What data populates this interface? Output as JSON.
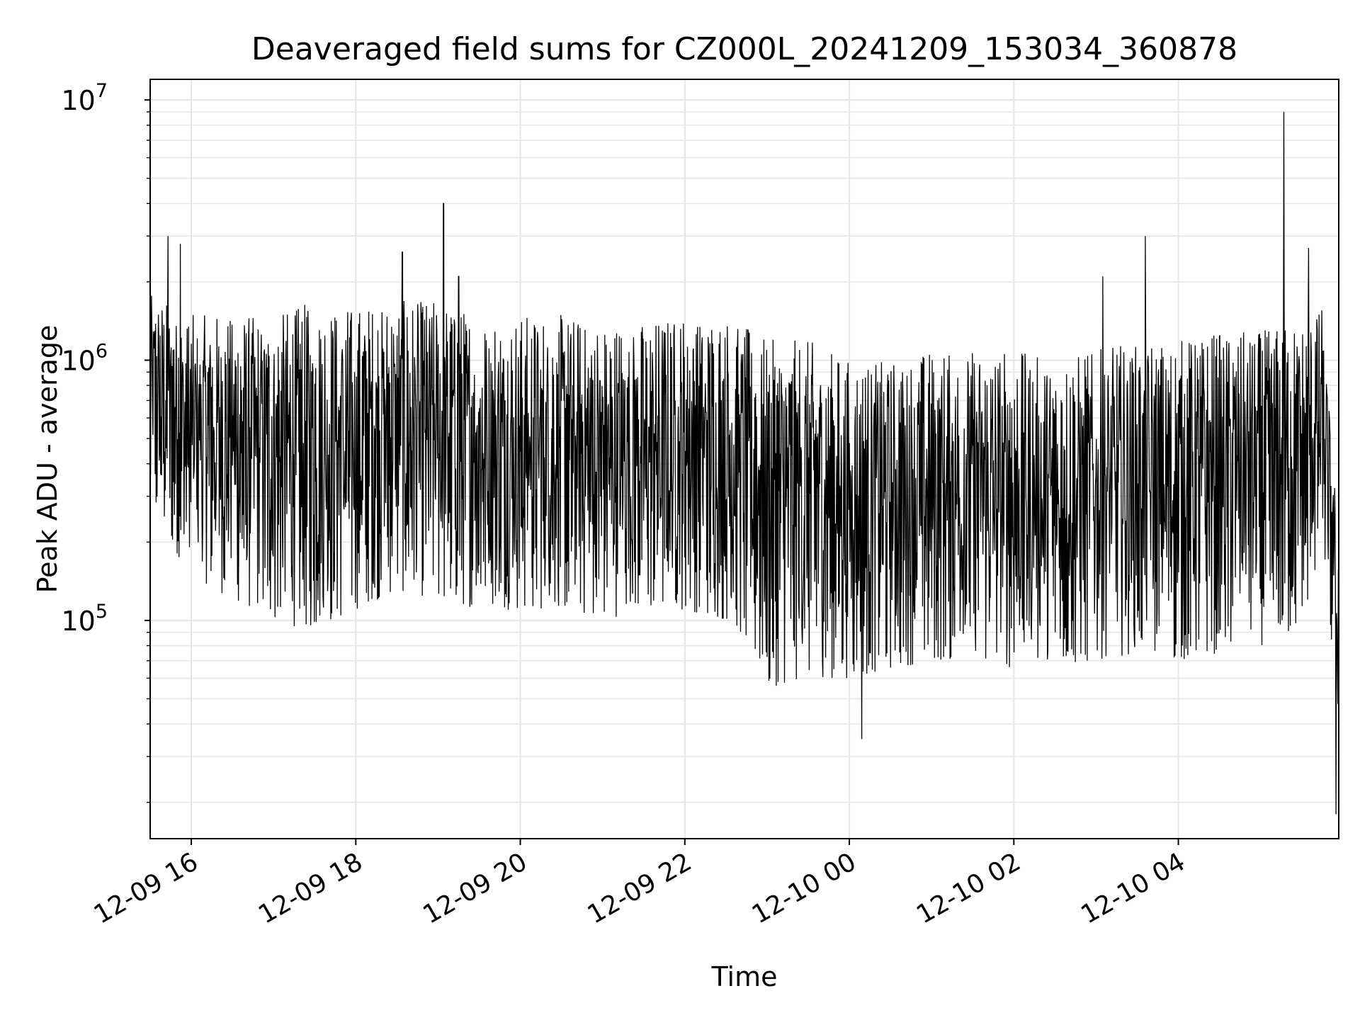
{
  "chart_data": {
    "type": "line",
    "title": "Deaveraged field sums for CZ000L_20241209_153034_360878",
    "xlabel": "Time",
    "ylabel": "Peak ADU - average",
    "yscale": "log",
    "ylim": [
      14500,
      12000000
    ],
    "xlim": [
      "12-09 15:30",
      "12-10 05:57"
    ],
    "x_ticks": [
      "12-09 16",
      "12-09 18",
      "12-09 20",
      "12-09 22",
      "12-10 00",
      "12-10 02",
      "12-10 04"
    ],
    "y_ticks": [
      {
        "base": "10",
        "exp": "5",
        "value": 100000
      },
      {
        "base": "10",
        "exp": "6",
        "value": 1000000
      },
      {
        "base": "10",
        "exp": "7",
        "value": 10000000
      }
    ],
    "grid": true,
    "line_color": "#000000",
    "grid_color": "#e6e6e6",
    "series": [
      {
        "x": [
          "12-09 15:30",
          "12-09 16:00",
          "12-09 16:30",
          "12-09 17:00",
          "12-09 17:30",
          "12-09 18:00",
          "12-09 18:30",
          "12-09 19:00",
          "12-09 19:30",
          "12-09 20:00",
          "12-09 20:30",
          "12-09 21:00",
          "12-09 21:30",
          "12-09 22:00",
          "12-09 22:30",
          "12-09 22:40",
          "12-09 23:00",
          "12-09 23:30",
          "12-10 00:00",
          "12-10 00:30",
          "12-10 01:00",
          "12-10 01:30",
          "12-10 02:00",
          "12-10 02:30",
          "12-10 03:00",
          "12-10 03:30",
          "12-10 04:00",
          "12-10 04:30",
          "12-10 05:00",
          "12-10 05:30",
          "12-10 05:45",
          "12-10 05:57"
        ],
        "upper": [
          1800000,
          1500000,
          1500000,
          1500000,
          1700000,
          1600000,
          1700000,
          1700000,
          1500000,
          1500000,
          1500000,
          1400000,
          1400000,
          1500000,
          1500000,
          1400000,
          1200000,
          1200000,
          1000000,
          1000000,
          1100000,
          1100000,
          1100000,
          1000000,
          1100000,
          1200000,
          1200000,
          1300000,
          1300000,
          1400000,
          1600000,
          200000
        ],
        "lower": [
          250000,
          150000,
          120000,
          100000,
          90000,
          110000,
          130000,
          120000,
          110000,
          110000,
          110000,
          100000,
          110000,
          110000,
          100000,
          90000,
          55000,
          60000,
          60000,
          65000,
          70000,
          70000,
          65000,
          65000,
          70000,
          75000,
          70000,
          75000,
          80000,
          90000,
          180000,
          40000
        ],
        "spikes": [
          {
            "x": "12-09 15:43",
            "y": 3000000
          },
          {
            "x": "12-09 15:52",
            "y": 2800000
          },
          {
            "x": "12-09 18:34",
            "y": 2600000
          },
          {
            "x": "12-09 19:04",
            "y": 4000000
          },
          {
            "x": "12-09 19:15",
            "y": 2100000
          },
          {
            "x": "12-10 03:05",
            "y": 2100000
          },
          {
            "x": "12-10 03:36",
            "y": 3000000
          },
          {
            "x": "12-10 05:17",
            "y": 9000000
          },
          {
            "x": "12-10 05:35",
            "y": 2700000
          },
          {
            "x": "12-10 00:09",
            "y": 35000
          },
          {
            "x": "12-10 05:55",
            "y": 18000
          }
        ]
      }
    ]
  }
}
